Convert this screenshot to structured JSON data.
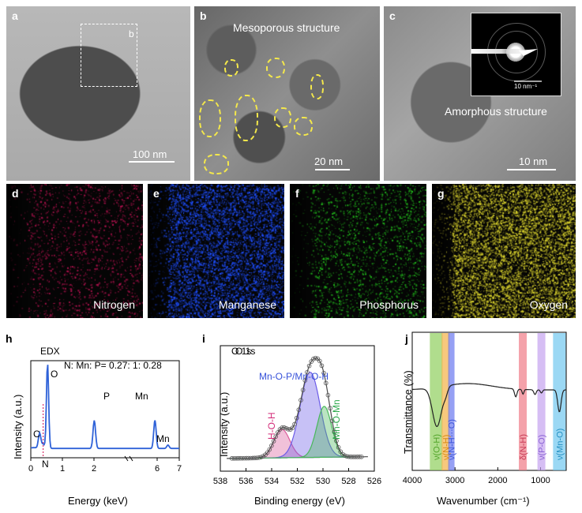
{
  "top_panels": [
    {
      "label": "a",
      "scale_text": "100 nm",
      "inset_label": "b"
    },
    {
      "label": "b",
      "title": "Mesoporous structure",
      "scale_text": "20 nm"
    },
    {
      "label": "c",
      "title": "Amorphous structure",
      "inset_scale_text": "10 nm⁻¹",
      "scale_text": "10 nm"
    }
  ],
  "maps": [
    {
      "label": "d",
      "name": "Nitrogen",
      "color": "#b1124e"
    },
    {
      "label": "e",
      "name": "Manganese",
      "color": "#1f4fff"
    },
    {
      "label": "f",
      "name": "Phosphorus",
      "color": "#22b81c"
    },
    {
      "label": "g",
      "name": "Oxygen",
      "color": "#d8d12d"
    }
  ],
  "bottom_panels": [
    {
      "label": "h",
      "title": "EDX",
      "subtitle": "N: Mn: P= 0.27: 1: 0.28",
      "x_title": "Energy (keV)",
      "y_title": "Intensity (a.u.)"
    },
    {
      "label": "i",
      "title": "O 1s",
      "x_title": "Binding energy (eV)",
      "y_title": "Intensity (a.u.)"
    },
    {
      "label": "j",
      "x_title": "Wavenumber (cm⁻¹)",
      "y_title": "Transmittance (%)"
    }
  ],
  "chart_data": [
    {
      "type": "line",
      "panel": "h",
      "title": "EDX",
      "xlabel": "Energy (keV)",
      "ylabel": "Intensity (a.u.)",
      "x_ticks": [
        "0",
        "1",
        "2",
        "6",
        "7"
      ],
      "x_axis_break": "between 3 and 5 keV",
      "peaks": [
        {
          "label": "C",
          "x": 0.28,
          "relative_intensity": 0.18
        },
        {
          "label": "N",
          "x": 0.39,
          "relative_intensity": 0.05
        },
        {
          "label": "O",
          "x": 0.53,
          "relative_intensity": 1.0
        },
        {
          "label": "P",
          "x": 2.01,
          "relative_intensity": 0.33
        },
        {
          "label": "Mn",
          "x": 5.9,
          "relative_intensity": 0.33
        },
        {
          "label": "Mn",
          "x": 6.49,
          "relative_intensity": 0.04
        }
      ],
      "line_color": "#2f62d8"
    },
    {
      "type": "area",
      "panel": "i",
      "title": "O 1s",
      "xlabel": "Binding energy (eV)",
      "ylabel": "Intensity (a.u.)",
      "x_ticks": [
        "538",
        "536",
        "534",
        "532",
        "530",
        "528",
        "526"
      ],
      "x_reversed": true,
      "components": [
        {
          "name": "H-O-H",
          "center": 533.2,
          "height": 0.24,
          "color": "#db5b9b"
        },
        {
          "name": "Mn-O-P/Mn-O-H",
          "center": 531.0,
          "height": 0.72,
          "color": "#6c5ce7"
        },
        {
          "name": "Mn-O-Mn",
          "center": 529.9,
          "height": 0.43,
          "color": "#49b85b"
        }
      ],
      "fit_peak_intensity": 0.82
    },
    {
      "type": "line",
      "panel": "j",
      "xlabel": "Wavenumber (cm⁻¹)",
      "ylabel": "Transmittance (%)",
      "x_ticks": [
        "4000",
        "3000",
        "2000",
        "1000"
      ],
      "x_reversed": true,
      "bands": [
        {
          "label": "ν(O-H)",
          "x": 3440,
          "color": "#8ecf5c"
        },
        {
          "label": "ν(N-H)",
          "x": 3220,
          "color": "#f3b046"
        },
        {
          "label": "ν(N-H⋯O)",
          "x": 3085,
          "color": "#6a78f0"
        },
        {
          "label": "δ(N-H)",
          "x": 1415,
          "color": "#ef7a86"
        },
        {
          "label": "ν(P-O)",
          "x": 980,
          "color": "#c5a3ef"
        },
        {
          "label": "ν(Mn-O)",
          "x": 560,
          "color": "#71c8f0"
        }
      ]
    }
  ]
}
